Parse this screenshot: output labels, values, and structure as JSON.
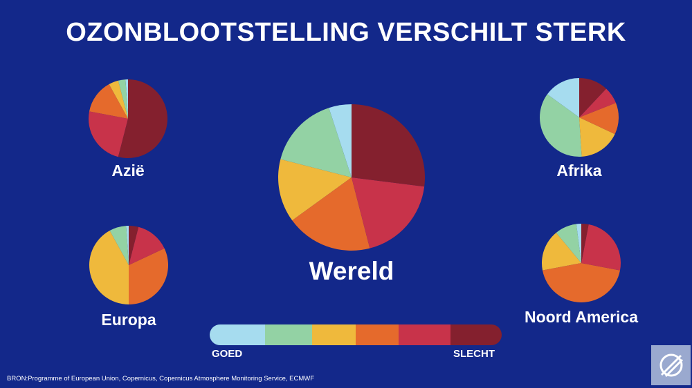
{
  "title": "OZONBLOOTSTELLING VERSCHILT STERK",
  "colors": [
    "#a6dcef",
    "#93d2a4",
    "#efb93c",
    "#e56a2c",
    "#c8334a",
    "#84202e"
  ],
  "chart_data": [
    {
      "type": "pie",
      "title": "Wereld",
      "values": [
        5,
        16,
        14,
        19,
        19,
        27
      ]
    },
    {
      "type": "pie",
      "title": "Azië",
      "values": [
        1,
        3,
        4,
        14,
        24,
        54
      ]
    },
    {
      "type": "pie",
      "title": "Afrika",
      "values": [
        15,
        36,
        17,
        13,
        7,
        12
      ]
    },
    {
      "type": "pie",
      "title": "Europa",
      "values": [
        1,
        7,
        42,
        32,
        14,
        4
      ]
    },
    {
      "type": "pie",
      "title": "Noord America",
      "values": [
        2,
        9,
        17,
        44,
        25,
        3
      ]
    }
  ],
  "legend": {
    "good_label": "GOED",
    "bad_label": "SLECHT"
  },
  "source": "BRON:Programme of European Union, Copernicus, Copernicus Atmosphere Monitoring Service, ECMWF",
  "logo_icon": "copernicus-logo-icon"
}
